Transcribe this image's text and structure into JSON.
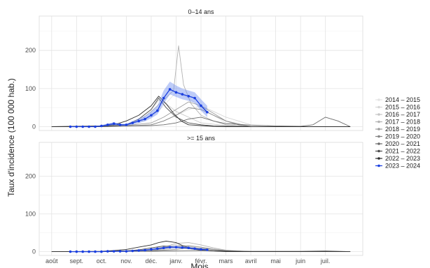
{
  "chart_data": {
    "type": "line",
    "ylabel": "Taux d'incidence (100 000 hab.)",
    "xlabel": "Mois",
    "x_ticks": [
      "août",
      "sept.",
      "oct.",
      "nov.",
      "déc.",
      "janv.",
      "févr.",
      "mars",
      "avril",
      "mai",
      "juin",
      "juil."
    ],
    "ylim": [
      -10,
      290
    ],
    "y_ticks": [
      0,
      100,
      200
    ],
    "grid": true,
    "legend_position": "right",
    "colors": {
      "2014 – 2015": "#e4e4e4",
      "2015 – 2016": "#d6d6d6",
      "2016 – 2017": "#c6c6c6",
      "2017 – 2018": "#b3b3b3",
      "2018 – 2019": "#9d9d9d",
      "2019 – 2020": "#858585",
      "2020 – 2021": "#6b6b6b",
      "2021 – 2022": "#4d4d4d",
      "2022 – 2023": "#2e2e2e",
      "2023 – 2024": "#1a3fe0"
    },
    "panels": [
      {
        "title": "0–14 ans",
        "series": [
          {
            "name": "2014 – 2015",
            "x": [
              0,
              2,
              3,
              3.5,
              4,
              4.5,
              5,
              5.5,
              6,
              6.5,
              7,
              8,
              9
            ],
            "y": [
              0,
              0,
              2,
              10,
              25,
              55,
              90,
              75,
              50,
              30,
              10,
              3,
              0
            ]
          },
          {
            "name": "2015 – 2016",
            "x": [
              0,
              2,
              3,
              4,
              4.5,
              5,
              5.5,
              6,
              6.5,
              7,
              7.5,
              8,
              9
            ],
            "y": [
              0,
              0,
              1,
              5,
              15,
              30,
              45,
              55,
              40,
              25,
              15,
              5,
              0
            ]
          },
          {
            "name": "2016 – 2017",
            "x": [
              0,
              2,
              3,
              3.5,
              4,
              4.3,
              4.6,
              5,
              5.5,
              6,
              7,
              8
            ],
            "y": [
              0,
              1,
              5,
              20,
              45,
              70,
              60,
              40,
              25,
              10,
              3,
              0
            ]
          },
          {
            "name": "2017 – 2018",
            "x": [
              0,
              2,
              3,
              3.5,
              4,
              4.5,
              4.9,
              5.1,
              5.3,
              5.6,
              6,
              6.5,
              7,
              8
            ],
            "y": [
              0,
              0,
              3,
              15,
              40,
              70,
              95,
              212,
              110,
              60,
              30,
              15,
              5,
              0
            ]
          },
          {
            "name": "2018 – 2019",
            "x": [
              0,
              2,
              3,
              4,
              4.5,
              5,
              5.5,
              6,
              6.5,
              7,
              8
            ],
            "y": [
              0,
              1,
              3,
              10,
              25,
              45,
              65,
              55,
              35,
              15,
              0
            ]
          },
          {
            "name": "2019 – 2020",
            "x": [
              0,
              2,
              3,
              4,
              4.5,
              5,
              5.5,
              6,
              6.5,
              7,
              7.5,
              8
            ],
            "y": [
              0,
              0,
              2,
              5,
              15,
              30,
              50,
              45,
              30,
              15,
              5,
              0
            ]
          },
          {
            "name": "2020 – 2021",
            "x": [
              0,
              2,
              3,
              4,
              4.5,
              5,
              5.5,
              6,
              6.5,
              7,
              8,
              9,
              10,
              10.5,
              11,
              11.5,
              12
            ],
            "y": [
              0,
              0,
              2,
              3,
              5,
              10,
              20,
              25,
              15,
              8,
              4,
              2,
              1,
              5,
              25,
              15,
              0
            ]
          },
          {
            "name": "2021 – 2022",
            "x": [
              0,
              2,
              3,
              3.5,
              4,
              4.3,
              4.6,
              5,
              5.5,
              6,
              6.5,
              7,
              8
            ],
            "y": [
              0,
              0,
              5,
              20,
              45,
              75,
              50,
              25,
              10,
              5,
              2,
              1,
              0
            ]
          },
          {
            "name": "2022 – 2023",
            "x": [
              0,
              2,
              2.5,
              3,
              3.5,
              4,
              4.3,
              4.6,
              4.9,
              5.2,
              5.5,
              6,
              6.5,
              7,
              12
            ],
            "y": [
              0,
              2,
              5,
              15,
              30,
              55,
              80,
              60,
              35,
              15,
              5,
              3,
              1,
              0,
              0
            ]
          },
          {
            "name": "2023 – 2024",
            "x": [
              0.75,
              1,
              1.25,
              1.5,
              1.75,
              2,
              2.25,
              2.5,
              2.75,
              3,
              3.25,
              3.5,
              3.75,
              4,
              4.25,
              4.5,
              4.75,
              5,
              5.25,
              5.5,
              5.75,
              6,
              6.25
            ],
            "y": [
              0,
              0,
              0,
              0,
              0,
              2,
              5,
              8,
              5,
              5,
              10,
              15,
              20,
              30,
              42,
              75,
              98,
              90,
              85,
              80,
              75,
              55,
              38
            ],
            "band_lower": [
              0,
              0,
              0,
              0,
              0,
              0,
              2,
              4,
              2,
              2,
              6,
              10,
              14,
              22,
              32,
              60,
              85,
              78,
              72,
              68,
              62,
              42,
              25
            ],
            "band_upper": [
              1,
              1,
              1,
              1,
              1,
              4,
              8,
              12,
              8,
              8,
              14,
              22,
              28,
              40,
              55,
              95,
              118,
              108,
              100,
              95,
              90,
              72,
              55
            ]
          }
        ]
      },
      {
        "title": ">= 15 ans",
        "series": [
          {
            "name": "2014 – 2015",
            "x": [
              0,
              2,
              3,
              4,
              4.5,
              5,
              5.5,
              6,
              6.5,
              7,
              8
            ],
            "y": [
              0,
              0,
              1,
              4,
              8,
              14,
              16,
              12,
              6,
              2,
              0
            ]
          },
          {
            "name": "2015 – 2016",
            "x": [
              0,
              2,
              3,
              4,
              4.5,
              5,
              5.5,
              6,
              6.5,
              7,
              8
            ],
            "y": [
              0,
              0,
              1,
              3,
              6,
              10,
              14,
              12,
              8,
              3,
              0
            ]
          },
          {
            "name": "2016 – 2017",
            "x": [
              0,
              2,
              3,
              4,
              4.5,
              5,
              5.5,
              6,
              7,
              8
            ],
            "y": [
              0,
              0,
              2,
              6,
              12,
              18,
              14,
              8,
              3,
              0
            ]
          },
          {
            "name": "2017 – 2018",
            "x": [
              0,
              2,
              3,
              4,
              4.5,
              5,
              5.5,
              6,
              6.5,
              7,
              8
            ],
            "y": [
              0,
              0,
              2,
              5,
              12,
              22,
              24,
              18,
              10,
              4,
              0
            ]
          },
          {
            "name": "2018 – 2019",
            "x": [
              0,
              2,
              3,
              4,
              4.5,
              5,
              5.5,
              6,
              6.5,
              7,
              8
            ],
            "y": [
              0,
              0,
              1,
              3,
              8,
              14,
              16,
              12,
              6,
              2,
              0
            ]
          },
          {
            "name": "2019 – 2020",
            "x": [
              0,
              2,
              3,
              4,
              5,
              5.5,
              6,
              6.5,
              7,
              8
            ],
            "y": [
              0,
              0,
              1,
              2,
              6,
              10,
              9,
              6,
              3,
              0
            ]
          },
          {
            "name": "2020 – 2021",
            "x": [
              0,
              2,
              3,
              4,
              5,
              6,
              7,
              8,
              9,
              10,
              11,
              12
            ],
            "y": [
              0,
              0,
              1,
              1,
              2,
              3,
              2,
              1,
              1,
              1,
              2,
              0
            ]
          },
          {
            "name": "2021 – 2022",
            "x": [
              0,
              2,
              3,
              3.5,
              4,
              4.5,
              5,
              5.5,
              6,
              6.5,
              7,
              8
            ],
            "y": [
              0,
              0,
              2,
              5,
              10,
              15,
              12,
              8,
              4,
              2,
              1,
              0
            ]
          },
          {
            "name": "2022 – 2023",
            "x": [
              0,
              2,
              2.5,
              3,
              3.5,
              4,
              4.3,
              4.6,
              5,
              5.3,
              5.7,
              6,
              6.5,
              7,
              12
            ],
            "y": [
              0,
              1,
              3,
              6,
              12,
              18,
              24,
              28,
              24,
              15,
              8,
              4,
              2,
              0,
              0
            ]
          },
          {
            "name": "2023 – 2024",
            "x": [
              0.75,
              1,
              1.25,
              1.5,
              1.75,
              2,
              2.25,
              2.5,
              2.75,
              3,
              3.25,
              3.5,
              3.75,
              4,
              4.25,
              4.5,
              4.75,
              5,
              5.25,
              5.5,
              5.75,
              6,
              6.25
            ],
            "y": [
              0,
              0,
              0,
              0,
              0,
              0,
              1,
              1,
              1,
              1,
              2,
              3,
              4,
              6,
              8,
              10,
              12,
              12,
              11,
              10,
              8,
              6,
              5
            ],
            "band_lower": [
              0,
              0,
              0,
              0,
              0,
              0,
              0,
              0,
              0,
              0,
              1,
              2,
              2,
              4,
              5,
              7,
              8,
              8,
              8,
              7,
              5,
              4,
              3
            ],
            "band_upper": [
              1,
              1,
              1,
              1,
              1,
              1,
              2,
              2,
              2,
              2,
              3,
              4,
              6,
              8,
              11,
              13,
              15,
              15,
              14,
              13,
              11,
              8,
              7
            ]
          }
        ]
      }
    ]
  }
}
